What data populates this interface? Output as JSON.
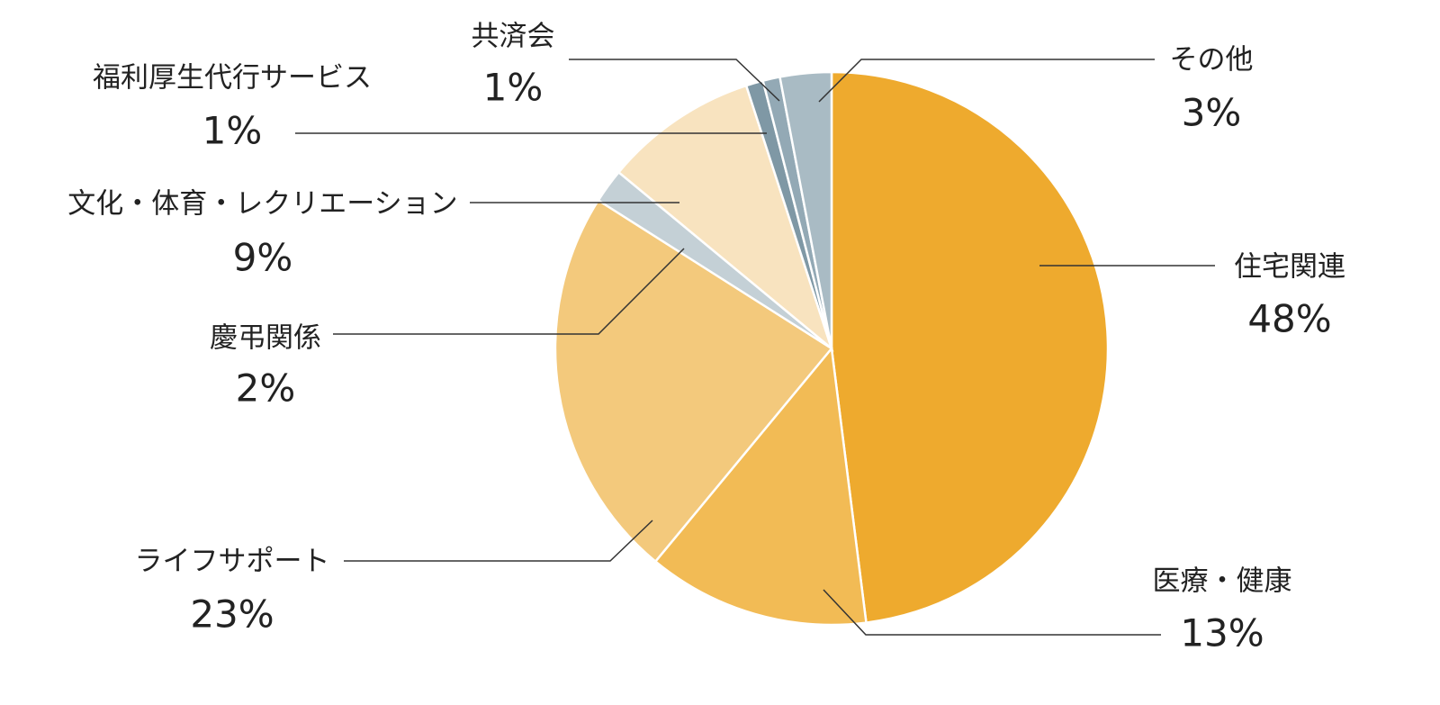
{
  "chart_data": {
    "type": "pie",
    "categories": [
      "住宅関連",
      "医療・健康",
      "ライフサポート",
      "慶弔関係",
      "文化・体育・レクリエーション",
      "福利厚生代行サービス",
      "共済会",
      "その他"
    ],
    "values": [
      48,
      13,
      23,
      2,
      9,
      1,
      1,
      3
    ],
    "value_labels": [
      "48%",
      "13%",
      "23%",
      "2%",
      "9%",
      "1%",
      "1%",
      "3%"
    ],
    "colors": [
      "#eeaa2e",
      "#f2bb55",
      "#f3c97c",
      "#c4d0d6",
      "#f8e3bf",
      "#7f98a5",
      "#93a9b5",
      "#a9bbc4"
    ]
  }
}
